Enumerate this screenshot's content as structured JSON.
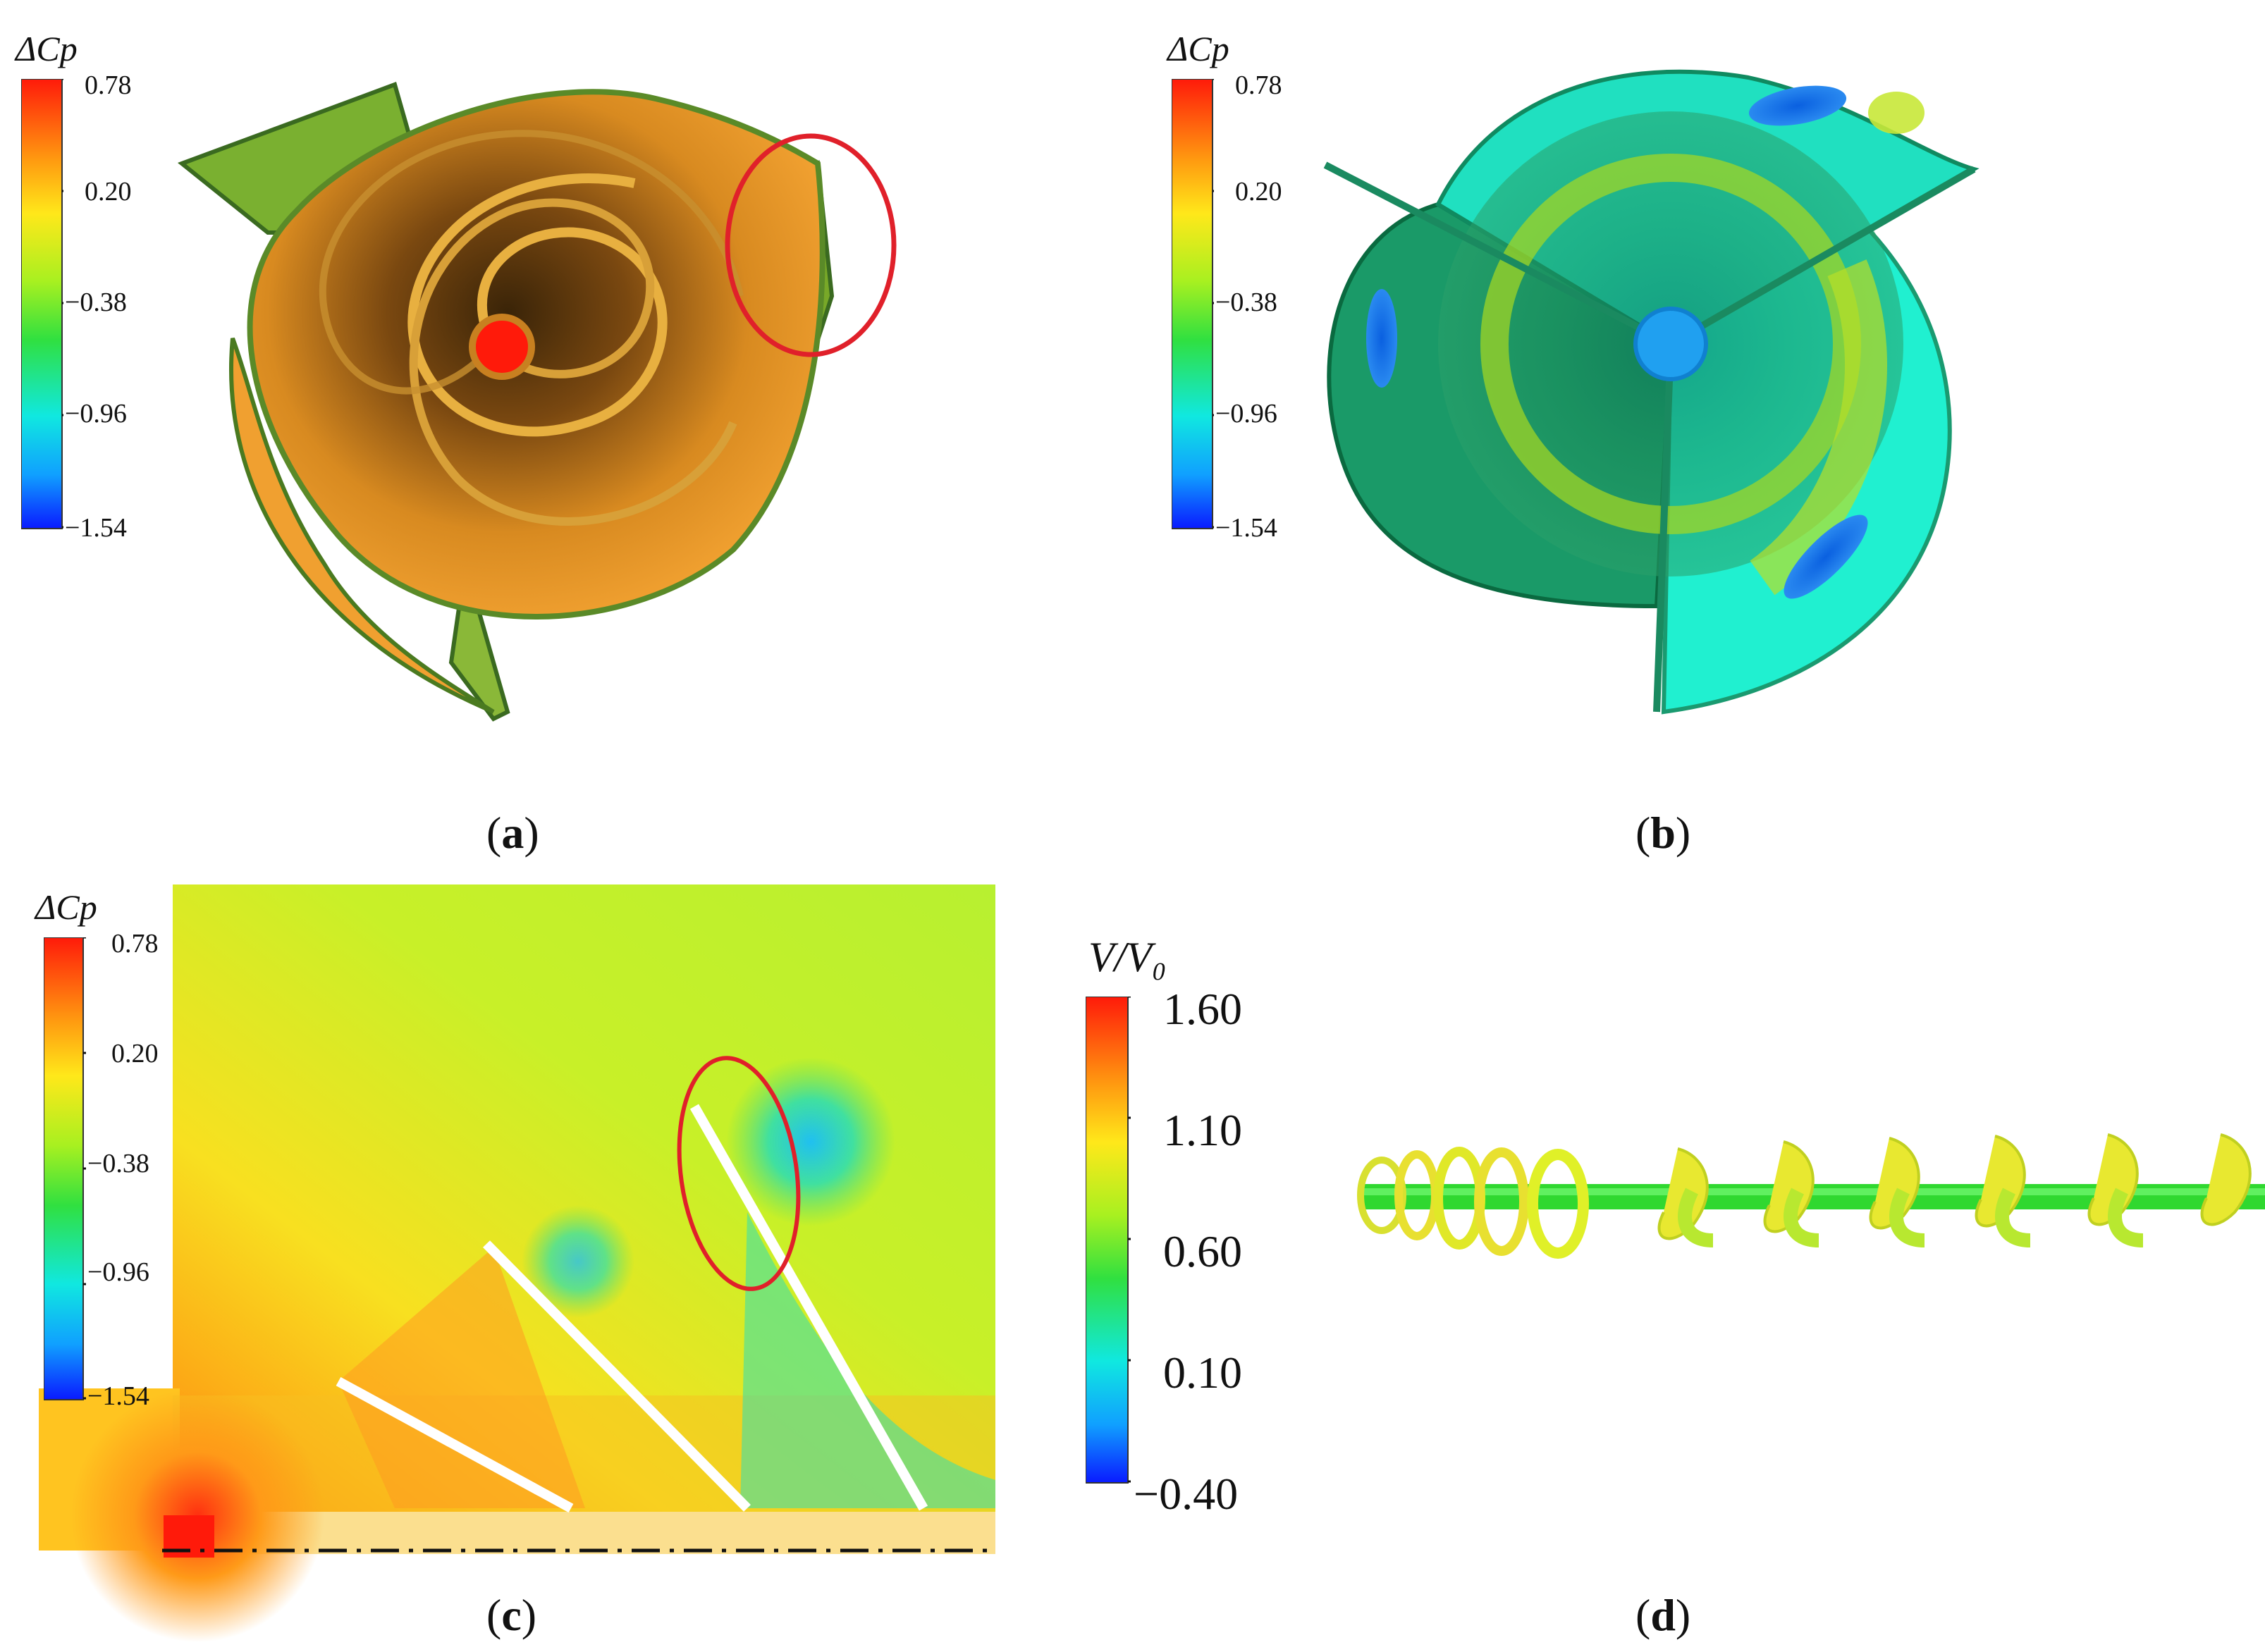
{
  "panels": {
    "a": {
      "caption_open": "(",
      "caption_letter": "a",
      "caption_close": ")",
      "colorbar": {
        "title": "ΔCp",
        "ticks": [
          "0.78",
          "0.20",
          "−0.38",
          "−0.96",
          "−1.54"
        ]
      }
    },
    "b": {
      "caption_open": "(",
      "caption_letter": "b",
      "caption_close": ")",
      "colorbar": {
        "title": "ΔCp",
        "ticks": [
          "0.78",
          "0.20",
          "−0.38",
          "−0.96",
          "−1.54"
        ]
      }
    },
    "c": {
      "caption_open": "(",
      "caption_letter": "c",
      "caption_close": ")",
      "colorbar": {
        "title": "ΔCp",
        "ticks": [
          "0.78",
          "0.20",
          "−0.38",
          "−0.96",
          "−1.54"
        ]
      }
    },
    "d": {
      "caption_open": "(",
      "caption_letter": "d",
      "caption_close": ")",
      "colorbar": {
        "title": "V/V₀",
        "ticks": [
          "1.60",
          "1.10",
          "0.60",
          "0.10",
          "−0.40"
        ]
      }
    }
  },
  "colors": {
    "jet_top": "#ff1a0a",
    "jet_mid": "#c8ff20",
    "jet_bottom": "#0a1aff",
    "highlight_ellipse": "#e0202a"
  }
}
